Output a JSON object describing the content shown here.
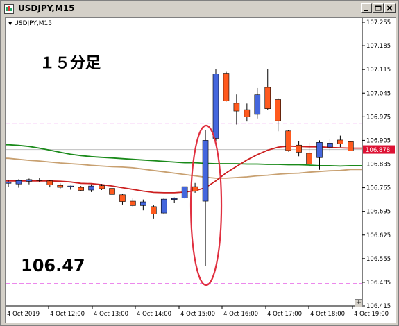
{
  "window": {
    "title": "USDJPY,M15",
    "buttons": [
      "minimize",
      "maximize",
      "close"
    ]
  },
  "chart_header": {
    "symbol_label": "USDJPY,M15"
  },
  "annotations": {
    "timeframe_label": "１５分足",
    "low_price_label": "106.47"
  },
  "zoom_button": {
    "label": "+"
  },
  "colors": {
    "bull": "#4466dd",
    "bear": "#ff5a1e",
    "ma_red": "#cc1f1f",
    "ma_green": "#1a8a1a",
    "ma_tan": "#c8a070",
    "dash_magenta": "#e040e0",
    "ellipse": "#e03040",
    "current_price_bg": "#dd1133"
  },
  "chart_data": {
    "type": "candlestick",
    "symbol": "USDJPY",
    "timeframe": "M15",
    "y_ticks": [
      "107.255",
      "107.185",
      "107.115",
      "107.045",
      "106.975",
      "106.905",
      "106.835",
      "106.765",
      "106.695",
      "106.625",
      "106.555",
      "106.485",
      "106.415"
    ],
    "ylim": [
      106.415,
      107.255
    ],
    "x_ticks": [
      "4 Oct 2019",
      "4 Oct 12:00",
      "4 Oct 13:00",
      "4 Oct 14:00",
      "4 Oct 15:00",
      "4 Oct 16:00",
      "4 Oct 17:00",
      "4 Oct 18:00",
      "4 Oct 19:00"
    ],
    "current_price": "106.878",
    "horizontal_lines": [
      106.956,
      106.481
    ],
    "candles": [
      {
        "o": 106.778,
        "h": 106.787,
        "l": 106.768,
        "c": 106.782
      },
      {
        "o": 106.776,
        "h": 106.79,
        "l": 106.765,
        "c": 106.786
      },
      {
        "o": 106.784,
        "h": 106.792,
        "l": 106.775,
        "c": 106.789
      },
      {
        "o": 106.788,
        "h": 106.793,
        "l": 106.781,
        "c": 106.786
      },
      {
        "o": 106.785,
        "h": 106.788,
        "l": 106.766,
        "c": 106.773
      },
      {
        "o": 106.772,
        "h": 106.778,
        "l": 106.76,
        "c": 106.766
      },
      {
        "o": 106.767,
        "h": 106.771,
        "l": 106.759,
        "c": 106.77
      },
      {
        "o": 106.766,
        "h": 106.77,
        "l": 106.754,
        "c": 106.757
      },
      {
        "o": 106.758,
        "h": 106.775,
        "l": 106.752,
        "c": 106.77
      },
      {
        "o": 106.771,
        "h": 106.776,
        "l": 106.758,
        "c": 106.762
      },
      {
        "o": 106.763,
        "h": 106.77,
        "l": 106.744,
        "c": 106.745
      },
      {
        "o": 106.744,
        "h": 106.746,
        "l": 106.715,
        "c": 106.724
      },
      {
        "o": 106.725,
        "h": 106.733,
        "l": 106.707,
        "c": 106.712
      },
      {
        "o": 106.712,
        "h": 106.73,
        "l": 106.698,
        "c": 106.723
      },
      {
        "o": 106.709,
        "h": 106.714,
        "l": 106.672,
        "c": 106.687
      },
      {
        "o": 106.69,
        "h": 106.733,
        "l": 106.686,
        "c": 106.731
      },
      {
        "o": 106.73,
        "h": 106.736,
        "l": 106.72,
        "c": 106.733
      },
      {
        "o": 106.734,
        "h": 106.768,
        "l": 106.733,
        "c": 106.768
      },
      {
        "o": 106.768,
        "h": 106.779,
        "l": 106.75,
        "c": 106.755
      },
      {
        "o": 106.725,
        "h": 106.935,
        "l": 106.534,
        "c": 106.905
      },
      {
        "o": 106.911,
        "h": 107.117,
        "l": 106.895,
        "c": 107.102
      },
      {
        "o": 107.104,
        "h": 107.108,
        "l": 107.02,
        "c": 107.022
      },
      {
        "o": 107.015,
        "h": 107.041,
        "l": 106.952,
        "c": 106.992
      },
      {
        "o": 106.996,
        "h": 107.014,
        "l": 106.961,
        "c": 106.975
      },
      {
        "o": 106.982,
        "h": 107.06,
        "l": 106.97,
        "c": 107.04
      },
      {
        "o": 107.062,
        "h": 107.117,
        "l": 106.996,
        "c": 106.999
      },
      {
        "o": 107.026,
        "h": 107.028,
        "l": 106.932,
        "c": 106.963
      },
      {
        "o": 106.933,
        "h": 106.935,
        "l": 106.872,
        "c": 106.875
      },
      {
        "o": 106.891,
        "h": 106.902,
        "l": 106.858,
        "c": 106.87
      },
      {
        "o": 106.867,
        "h": 106.898,
        "l": 106.827,
        "c": 106.835
      },
      {
        "o": 106.854,
        "h": 106.905,
        "l": 106.818,
        "c": 106.899
      },
      {
        "o": 106.885,
        "h": 106.908,
        "l": 106.872,
        "c": 106.897
      },
      {
        "o": 106.906,
        "h": 106.919,
        "l": 106.885,
        "c": 106.895
      },
      {
        "o": 106.901,
        "h": 106.903,
        "l": 106.873,
        "c": 106.874
      }
    ],
    "ma_red": [
      106.785,
      106.785,
      106.785,
      106.785,
      106.785,
      106.784,
      106.782,
      106.778,
      106.777,
      106.774,
      106.77,
      106.765,
      106.76,
      106.755,
      106.751,
      106.75,
      106.75,
      106.752,
      106.756,
      106.765,
      106.785,
      106.809,
      106.828,
      106.847,
      106.863,
      106.876,
      106.885,
      106.888,
      106.887,
      106.886,
      106.886,
      106.884,
      106.883,
      106.882
    ],
    "ma_green": [
      106.892,
      106.89,
      106.887,
      106.882,
      106.876,
      106.87,
      106.864,
      106.86,
      106.857,
      106.855,
      106.853,
      106.851,
      106.849,
      106.847,
      106.845,
      106.843,
      106.841,
      106.839,
      106.839,
      106.837,
      106.836,
      106.836,
      106.836,
      106.835,
      106.835,
      106.834,
      106.834,
      106.833,
      106.833,
      106.832,
      106.83,
      106.83,
      106.829,
      106.83
    ],
    "ma_tan": [
      106.852,
      106.849,
      106.846,
      106.844,
      106.841,
      106.838,
      106.836,
      106.834,
      106.831,
      106.829,
      106.827,
      106.826,
      106.824,
      106.82,
      106.816,
      106.812,
      106.808,
      106.804,
      106.8,
      106.796,
      106.793,
      106.793,
      106.795,
      106.797,
      106.8,
      106.802,
      106.805,
      106.807,
      106.808,
      106.811,
      106.813,
      106.815,
      106.816,
      106.819
    ]
  }
}
